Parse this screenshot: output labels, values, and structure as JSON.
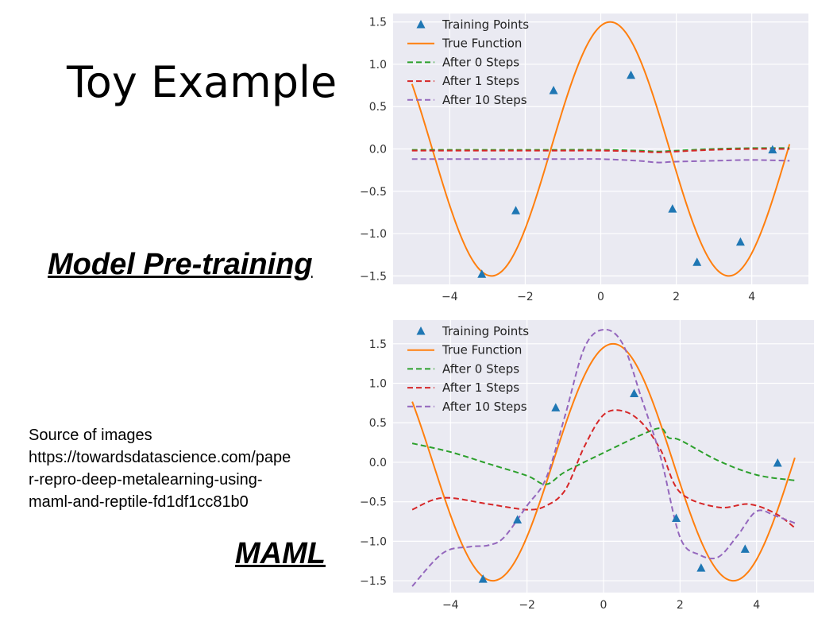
{
  "slide": {
    "title": "Toy Example",
    "pretrain_label": "Model Pre-training",
    "maml_label": "MAML",
    "source_lines": [
      "Source of images",
      "https://towardsdatascience.com/pape",
      "r-repro-deep-metalearning-using-",
      "maml-and-reptile-fd1df1cc81b0"
    ]
  },
  "chart_data": [
    {
      "type": "line",
      "name": "Model Pre-training",
      "xlim": [
        -5.5,
        5.5
      ],
      "ylim": [
        -1.6,
        1.6
      ],
      "xticks": [
        -4,
        -2,
        0,
        2,
        4
      ],
      "xtick_labels": [
        "−4",
        "−2",
        "0",
        "2",
        "4"
      ],
      "yticks": [
        -1.5,
        -1.0,
        -0.5,
        0.0,
        0.5,
        1.0,
        1.5
      ],
      "ytick_labels": [
        "−1.5",
        "−1.0",
        "−0.5",
        "0.0",
        "0.5",
        "1.0",
        "1.5"
      ],
      "grid": true,
      "background": "#eaeaf2",
      "legend_position": "upper-left",
      "legend": [
        "Training Points",
        "True Function",
        "After 0 Steps",
        "After 1 Steps",
        "After 10 Steps"
      ],
      "true_function": {
        "name": "True Function",
        "color": "#ff7f0e",
        "amplitude": 1.5,
        "phase": -0.25,
        "x_range": [
          -5,
          5
        ]
      },
      "training_points": {
        "name": "Training Points",
        "color": "#1f77b4",
        "x": [
          -3.15,
          -2.25,
          -1.25,
          0.8,
          1.9,
          2.55,
          3.7,
          4.55
        ],
        "y": [
          -1.48,
          -0.73,
          0.69,
          0.87,
          -0.71,
          -1.34,
          -1.1,
          -0.01
        ]
      },
      "series": [
        {
          "name": "After 0 Steps",
          "color": "#2ca02c",
          "x": [
            -5,
            -4,
            -3,
            -2,
            -1,
            0,
            1,
            1.5,
            2,
            3,
            4,
            5
          ],
          "y": [
            -0.01,
            -0.01,
            -0.01,
            -0.01,
            -0.01,
            -0.01,
            -0.02,
            -0.03,
            -0.02,
            0.0,
            0.01,
            0.01
          ]
        },
        {
          "name": "After 1 Steps",
          "color": "#d62728",
          "x": [
            -5,
            -4,
            -3,
            -2,
            -1,
            0,
            1,
            1.5,
            2,
            3,
            4,
            5
          ],
          "y": [
            -0.02,
            -0.02,
            -0.02,
            -0.02,
            -0.02,
            -0.02,
            -0.03,
            -0.04,
            -0.03,
            -0.01,
            0.0,
            0.0
          ]
        },
        {
          "name": "After 10 Steps",
          "color": "#9467bd",
          "x": [
            -5,
            -4,
            -3,
            -2,
            -1,
            0,
            1,
            1.5,
            2,
            3,
            4,
            5
          ],
          "y": [
            -0.12,
            -0.12,
            -0.12,
            -0.12,
            -0.12,
            -0.12,
            -0.14,
            -0.16,
            -0.15,
            -0.14,
            -0.13,
            -0.14
          ]
        }
      ]
    },
    {
      "type": "line",
      "name": "MAML",
      "xlim": [
        -5.5,
        5.5
      ],
      "ylim": [
        -1.65,
        1.8
      ],
      "xticks": [
        -4,
        -2,
        0,
        2,
        4
      ],
      "xtick_labels": [
        "−4",
        "−2",
        "0",
        "2",
        "4"
      ],
      "yticks": [
        -1.5,
        -1.0,
        -0.5,
        0.0,
        0.5,
        1.0,
        1.5
      ],
      "ytick_labels": [
        "−1.5",
        "−1.0",
        "−0.5",
        "0.0",
        "0.5",
        "1.0",
        "1.5"
      ],
      "grid": true,
      "background": "#eaeaf2",
      "legend_position": "upper-left",
      "legend": [
        "Training Points",
        "True Function",
        "After 0 Steps",
        "After 1 Steps",
        "After 10 Steps"
      ],
      "true_function": {
        "name": "True Function",
        "color": "#ff7f0e",
        "amplitude": 1.5,
        "phase": -0.25,
        "x_range": [
          -5,
          5
        ]
      },
      "training_points": {
        "name": "Training Points",
        "color": "#1f77b4",
        "x": [
          -3.15,
          -2.25,
          -1.25,
          0.8,
          1.9,
          2.55,
          3.7,
          4.55
        ],
        "y": [
          -1.48,
          -0.73,
          0.69,
          0.87,
          -0.71,
          -1.34,
          -1.1,
          -0.01
        ]
      },
      "series": [
        {
          "name": "After 0 Steps",
          "color": "#2ca02c",
          "x": [
            -5,
            -4,
            -3,
            -2,
            -1.5,
            -1,
            0,
            1,
            1.5,
            1.7,
            2,
            3,
            4,
            5
          ],
          "y": [
            0.24,
            0.13,
            -0.02,
            -0.17,
            -0.28,
            -0.12,
            0.12,
            0.35,
            0.43,
            0.31,
            0.28,
            0.02,
            -0.16,
            -0.23
          ]
        },
        {
          "name": "After 1 Steps",
          "color": "#d62728",
          "x": [
            -5,
            -4.2,
            -3,
            -2,
            -1.5,
            -1,
            -0.5,
            0,
            0.5,
            1,
            1.5,
            2,
            3,
            3.8,
            4.5,
            5
          ],
          "y": [
            -0.6,
            -0.45,
            -0.53,
            -0.6,
            -0.55,
            -0.35,
            0.2,
            0.6,
            0.65,
            0.5,
            0.15,
            -0.38,
            -0.57,
            -0.53,
            -0.65,
            -0.83
          ]
        },
        {
          "name": "After 10 Steps",
          "color": "#9467bd",
          "x": [
            -5,
            -4.2,
            -3.5,
            -3,
            -2.6,
            -2,
            -1.5,
            -1,
            -0.5,
            0,
            0.5,
            1,
            1.5,
            2,
            2.5,
            3,
            3.5,
            4,
            4.5,
            5
          ],
          "y": [
            -1.57,
            -1.15,
            -1.07,
            -1.05,
            -0.95,
            -0.55,
            -0.2,
            0.6,
            1.45,
            1.68,
            1.5,
            0.8,
            0.05,
            -0.95,
            -1.17,
            -1.2,
            -0.93,
            -0.62,
            -0.68,
            -0.77
          ]
        }
      ]
    }
  ]
}
